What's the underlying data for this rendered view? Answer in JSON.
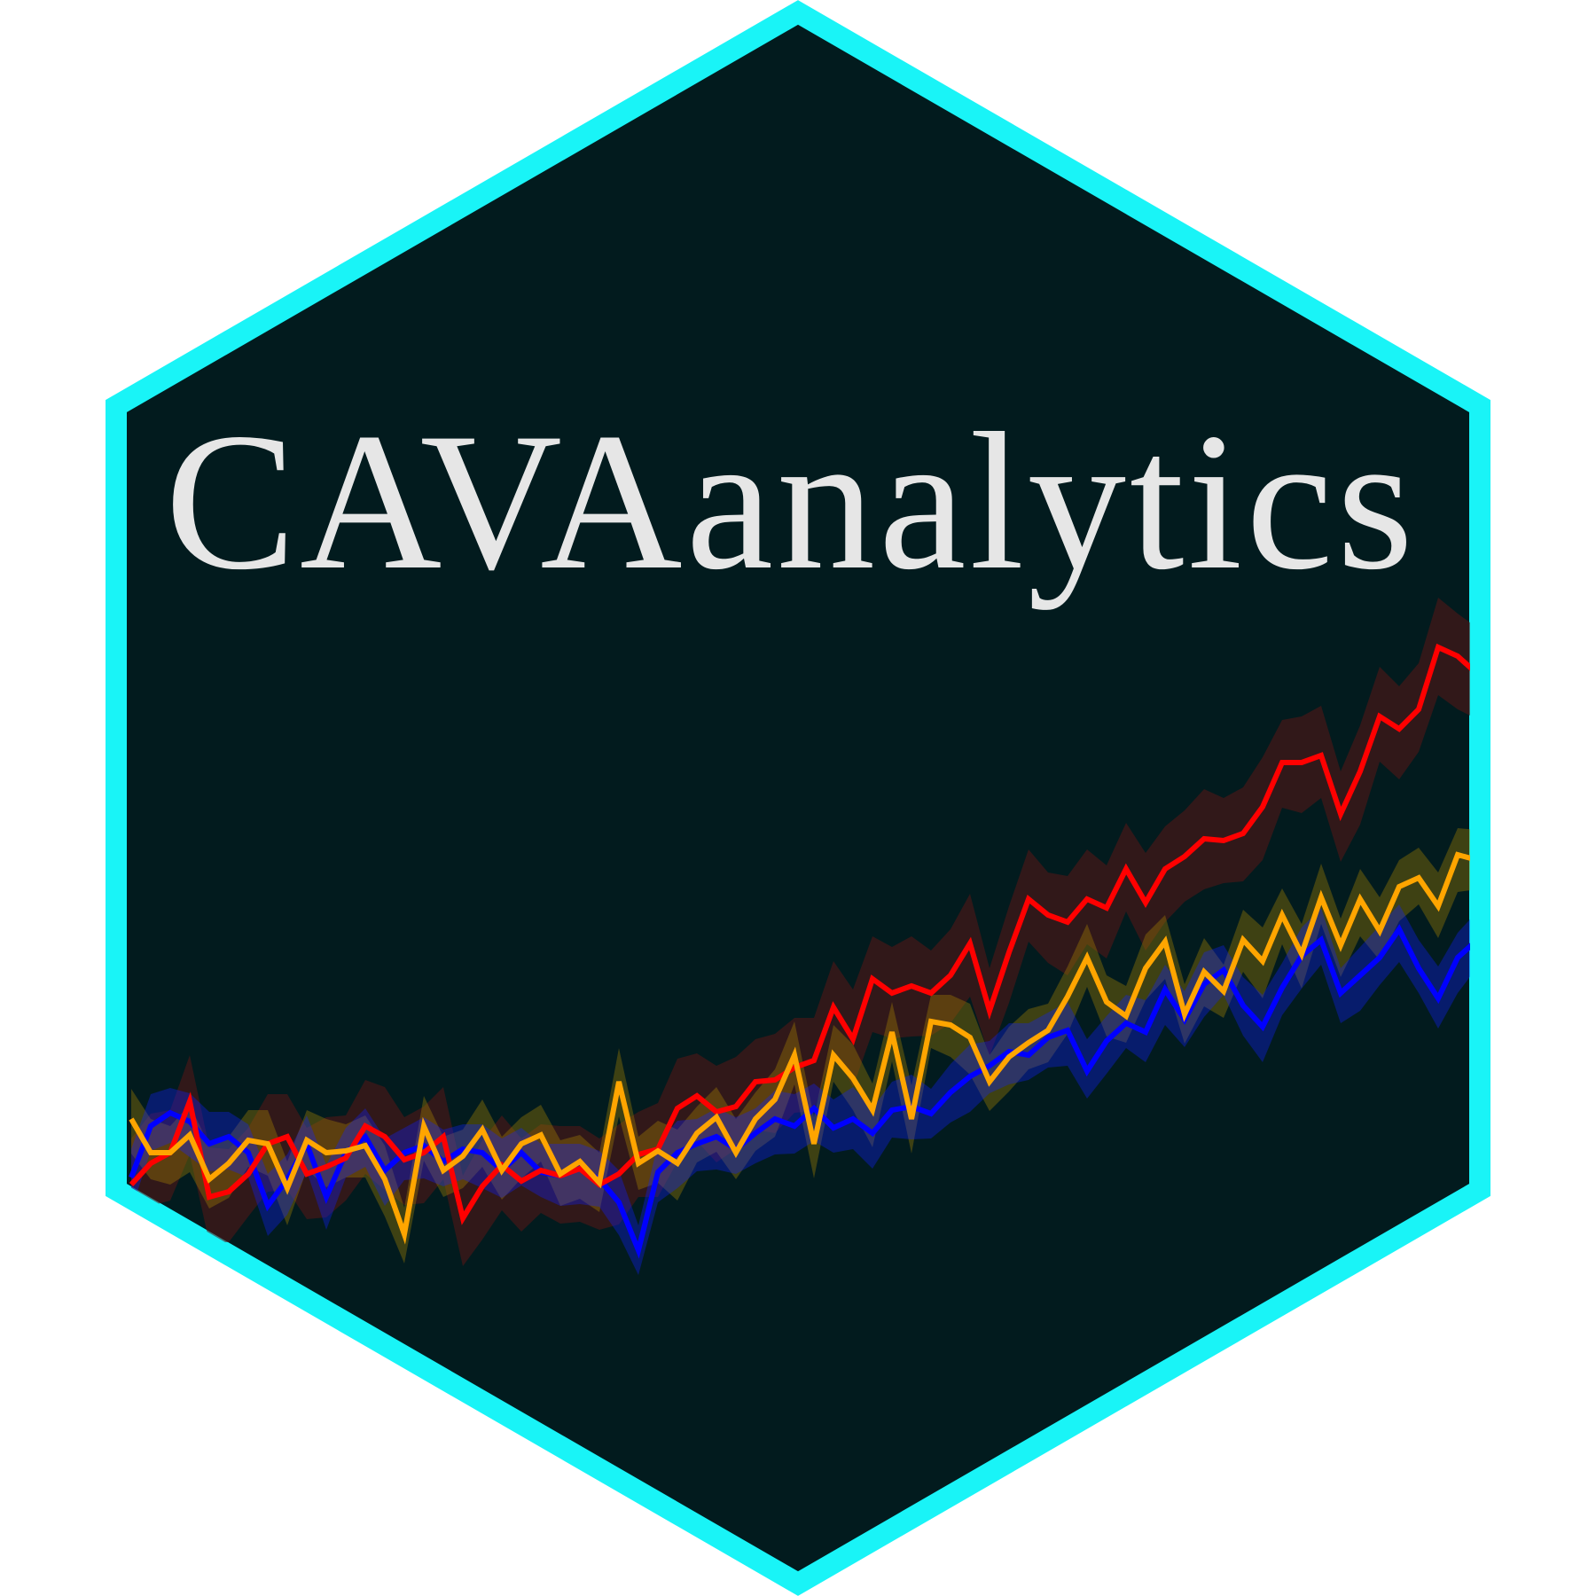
{
  "logo": {
    "title": "CAVAanalytics",
    "colors": {
      "background": "#021b1e",
      "border": "#19f4f7",
      "text": "#e6e6e6"
    },
    "series": [
      {
        "color": "#0000ff",
        "band_color": "#1020ff"
      },
      {
        "color": "#ffa500",
        "band_color": "#b08a00"
      },
      {
        "color": "#ff0000",
        "band_color": "#5a1515"
      }
    ]
  }
}
